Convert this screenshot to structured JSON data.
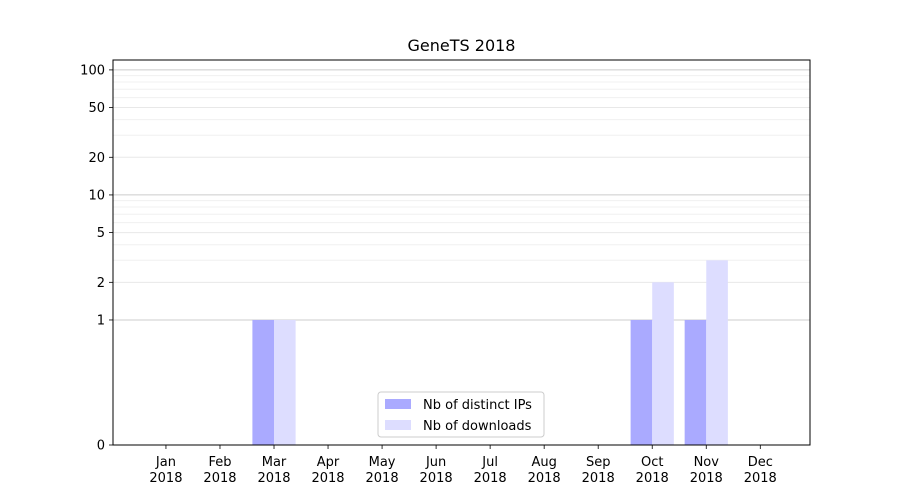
{
  "chart_data": {
    "type": "bar",
    "title": "GeneTS 2018",
    "xlabel": "",
    "ylabel": "",
    "yscale": "symlog",
    "ylim": [
      0,
      120
    ],
    "yticks": [
      0,
      1,
      2,
      5,
      10,
      20,
      50,
      100
    ],
    "ytick_labels": [
      "0",
      "1",
      "2",
      "5",
      "10",
      "20",
      "50",
      "100"
    ],
    "grid": true,
    "legend_position": "bottom-center",
    "categories": [
      "Jan\n2018",
      "Feb\n2018",
      "Mar\n2018",
      "Apr\n2018",
      "May\n2018",
      "Jun\n2018",
      "Jul\n2018",
      "Aug\n2018",
      "Sep\n2018",
      "Oct\n2018",
      "Nov\n2018",
      "Dec\n2018"
    ],
    "series": [
      {
        "name": "Nb of distinct IPs",
        "color": "#aaaaff",
        "values": [
          0,
          0,
          1,
          0,
          0,
          0,
          0,
          0,
          0,
          1,
          1,
          0
        ]
      },
      {
        "name": "Nb of downloads",
        "color": "#ddddff",
        "values": [
          0,
          0,
          1,
          0,
          0,
          0,
          0,
          0,
          0,
          2,
          3,
          0
        ]
      }
    ]
  }
}
